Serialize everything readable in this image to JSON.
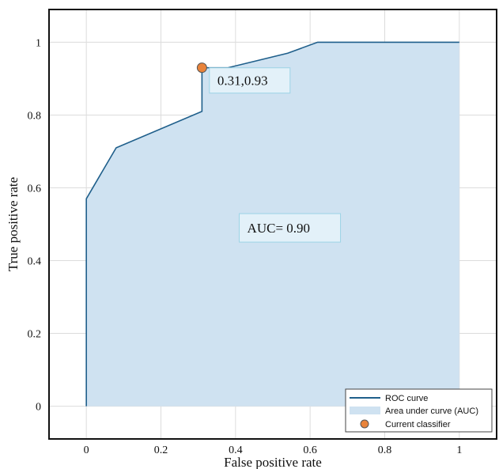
{
  "chart_data": {
    "type": "area",
    "title": "",
    "xlabel": "False positive rate",
    "ylabel": "True positive rate",
    "xlim": [
      -0.1,
      1.1
    ],
    "ylim": [
      -0.09,
      1.09
    ],
    "xticks": [
      0,
      0.2,
      0.4,
      0.6,
      0.8,
      1
    ],
    "xtick_labels": [
      "0",
      "0.2",
      "0.4",
      "0.6",
      "0.8",
      "1"
    ],
    "yticks": [
      0,
      0.2,
      0.4,
      0.6,
      0.8,
      1
    ],
    "ytick_labels": [
      "0",
      "0.2",
      "0.4",
      "0.6",
      "0.8",
      "1"
    ],
    "grid": true,
    "legend_position": "bottom-right",
    "series": [
      {
        "name": "ROC curve",
        "color": "#1f5f8b",
        "x": [
          0,
          0,
          0.08,
          0.31,
          0.31,
          0.38,
          0.54,
          0.62,
          1.0
        ],
        "y": [
          0,
          0.57,
          0.71,
          0.81,
          0.93,
          0.93,
          0.97,
          1.0,
          1.0
        ]
      }
    ],
    "area": {
      "name": "Area under curve (AUC)",
      "color": "#cfe2f1"
    },
    "classifier_point": {
      "name": "Current classifier",
      "x": 0.31,
      "y": 0.93,
      "color": "#e8833a"
    },
    "annotations": [
      {
        "text": "0.31,0.93",
        "x": 0.33,
        "y": 0.895
      },
      {
        "text": "AUC= 0.90",
        "x": 0.41,
        "y": 0.49
      }
    ]
  }
}
